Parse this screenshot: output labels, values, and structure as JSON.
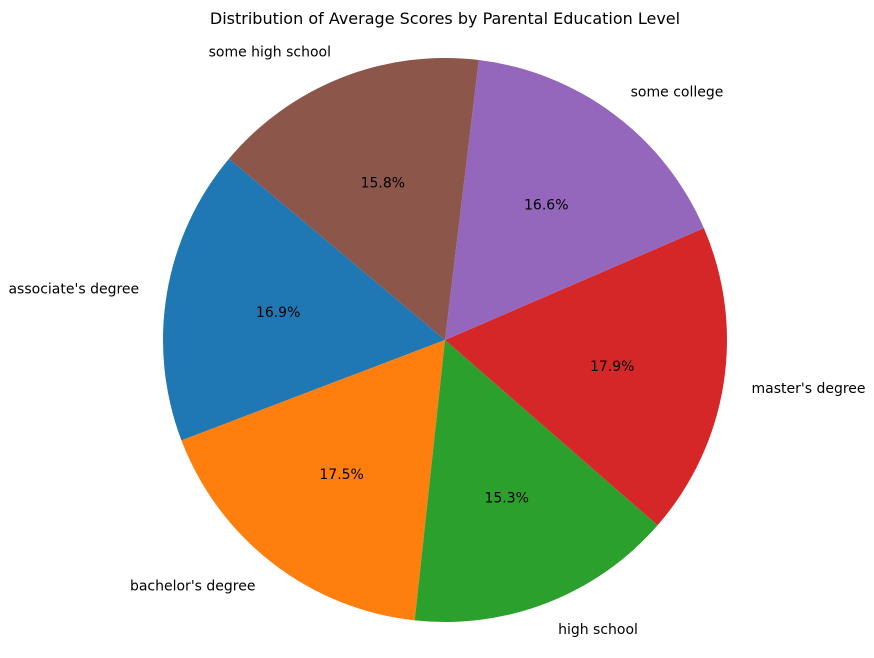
{
  "chart_data": {
    "type": "pie",
    "title": "Distribution of Average Scores by Parental Education Level",
    "start_angle_deg": 140,
    "slices": [
      {
        "label": "associate's degree",
        "value": 16.9,
        "pct_text": "16.9%",
        "color": "#1f77b4"
      },
      {
        "label": "bachelor's degree",
        "value": 17.5,
        "pct_text": "17.5%",
        "color": "#ff7f0e"
      },
      {
        "label": "high school",
        "value": 15.3,
        "pct_text": "15.3%",
        "color": "#2ca02c"
      },
      {
        "label": "master's degree",
        "value": 17.9,
        "pct_text": "17.9%",
        "color": "#d62728"
      },
      {
        "label": "some college",
        "value": 16.6,
        "pct_text": "16.6%",
        "color": "#9467bd"
      },
      {
        "label": "some high school",
        "value": 15.8,
        "pct_text": "15.8%",
        "color": "#8c564b"
      }
    ]
  }
}
